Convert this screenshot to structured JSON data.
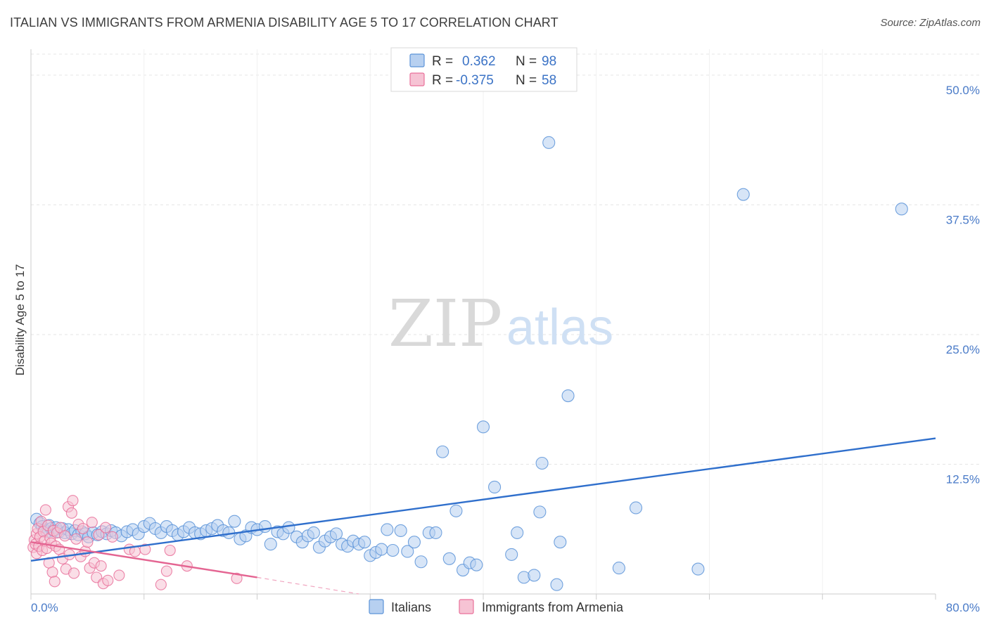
{
  "title": "ITALIAN VS IMMIGRANTS FROM ARMENIA DISABILITY AGE 5 TO 17 CORRELATION CHART",
  "source": "Source: ZipAtlas.com",
  "watermark": {
    "zip": "ZIP",
    "atlas": "atlas"
  },
  "colors": {
    "italians": "#5b93d8",
    "italians_fill": "#b7d0f0",
    "armenia": "#e9709a",
    "armenia_fill": "#f6c3d4",
    "tick_text": "#4a7bc8",
    "grid": "#e5e5e5"
  },
  "legend": {
    "rows": [
      {
        "r_label": "R =",
        "r_value": "0.362",
        "n_label": "N =",
        "n_value": "98"
      },
      {
        "r_label": "R =",
        "r_value": "-0.375",
        "n_label": "N =",
        "n_value": "58"
      }
    ]
  },
  "bottom_legend": {
    "items": [
      "Italians",
      "Immigrants from Armenia"
    ]
  },
  "chart_data": {
    "type": "scatter",
    "title": "ITALIAN VS IMMIGRANTS FROM ARMENIA DISABILITY AGE 5 TO 17 CORRELATION CHART",
    "xlabel": "",
    "ylabel": "Disability Age 5 to 17",
    "xlim": [
      0,
      80
    ],
    "ylim": [
      0,
      52.5
    ],
    "x_tick_labels": [
      {
        "value": 0,
        "label": "0.0%"
      },
      {
        "value": 80,
        "label": "80.0%"
      }
    ],
    "y_tick_labels": [
      {
        "value": 12.5,
        "label": "12.5%"
      },
      {
        "value": 25,
        "label": "25.0%"
      },
      {
        "value": 37.5,
        "label": "37.5%"
      },
      {
        "value": 50,
        "label": "50.0%"
      }
    ],
    "grid": true,
    "legend_position": "top-center",
    "series": [
      {
        "name": "Italians",
        "color": "#5b93d8",
        "trend": {
          "x": [
            0,
            80
          ],
          "y": [
            3.2,
            15.0
          ]
        },
        "points": [
          [
            0.5,
            7.2
          ],
          [
            0.8,
            6.8
          ],
          [
            1.0,
            6.5
          ],
          [
            1.2,
            6.2
          ],
          [
            1.4,
            6.0
          ],
          [
            1.6,
            6.6
          ],
          [
            1.8,
            6.3
          ],
          [
            2.0,
            6.1
          ],
          [
            2.2,
            6.4
          ],
          [
            2.5,
            6.0
          ],
          [
            2.8,
            6.3
          ],
          [
            3.0,
            5.9
          ],
          [
            3.3,
            6.2
          ],
          [
            3.6,
            5.8
          ],
          [
            3.9,
            6.1
          ],
          [
            4.2,
            5.7
          ],
          [
            4.5,
            6.0
          ],
          [
            4.8,
            5.8
          ],
          [
            5.1,
            5.5
          ],
          [
            5.5,
            5.9
          ],
          [
            5.9,
            5.7
          ],
          [
            6.3,
            6.0
          ],
          [
            6.7,
            5.8
          ],
          [
            7.1,
            6.1
          ],
          [
            7.5,
            5.9
          ],
          [
            8.0,
            5.6
          ],
          [
            8.5,
            6.0
          ],
          [
            9.0,
            6.2
          ],
          [
            9.5,
            5.8
          ],
          [
            10.0,
            6.5
          ],
          [
            10.5,
            6.8
          ],
          [
            11.0,
            6.3
          ],
          [
            11.5,
            5.9
          ],
          [
            12.0,
            6.5
          ],
          [
            12.5,
            6.1
          ],
          [
            13.0,
            5.7
          ],
          [
            13.5,
            6.0
          ],
          [
            14.0,
            6.4
          ],
          [
            14.5,
            5.9
          ],
          [
            15.0,
            5.8
          ],
          [
            15.5,
            6.1
          ],
          [
            16.0,
            6.3
          ],
          [
            16.5,
            6.6
          ],
          [
            17.0,
            6.1
          ],
          [
            17.5,
            5.9
          ],
          [
            18.0,
            7.0
          ],
          [
            18.5,
            5.3
          ],
          [
            19.0,
            5.6
          ],
          [
            19.5,
            6.4
          ],
          [
            20.0,
            6.2
          ],
          [
            20.7,
            6.5
          ],
          [
            21.2,
            4.8
          ],
          [
            21.8,
            6.0
          ],
          [
            22.3,
            5.8
          ],
          [
            22.8,
            6.4
          ],
          [
            23.5,
            5.5
          ],
          [
            24.0,
            5.0
          ],
          [
            24.5,
            5.6
          ],
          [
            25.0,
            5.9
          ],
          [
            25.5,
            4.5
          ],
          [
            26.0,
            5.1
          ],
          [
            26.5,
            5.5
          ],
          [
            27.0,
            5.8
          ],
          [
            27.5,
            4.8
          ],
          [
            28.0,
            4.6
          ],
          [
            28.5,
            5.1
          ],
          [
            29.0,
            4.8
          ],
          [
            29.5,
            5.0
          ],
          [
            30.0,
            3.7
          ],
          [
            30.5,
            4.0
          ],
          [
            31.0,
            4.3
          ],
          [
            31.5,
            6.2
          ],
          [
            32.0,
            4.2
          ],
          [
            32.7,
            6.1
          ],
          [
            33.3,
            4.1
          ],
          [
            33.9,
            5.0
          ],
          [
            34.5,
            3.1
          ],
          [
            35.2,
            5.9
          ],
          [
            35.8,
            5.9
          ],
          [
            36.4,
            13.7
          ],
          [
            37.0,
            3.4
          ],
          [
            37.6,
            8.0
          ],
          [
            38.2,
            2.3
          ],
          [
            38.8,
            3.0
          ],
          [
            39.4,
            2.8
          ],
          [
            40.0,
            16.1
          ],
          [
            41.0,
            10.3
          ],
          [
            42.5,
            3.8
          ],
          [
            43.0,
            5.9
          ],
          [
            43.6,
            1.6
          ],
          [
            44.5,
            1.8
          ],
          [
            45.0,
            7.9
          ],
          [
            45.2,
            12.6
          ],
          [
            45.8,
            43.5
          ],
          [
            46.5,
            0.9
          ],
          [
            46.8,
            5.0
          ],
          [
            47.5,
            19.1
          ],
          [
            52.0,
            2.5
          ],
          [
            53.5,
            8.3
          ],
          [
            59.0,
            2.4
          ],
          [
            63.0,
            38.5
          ],
          [
            77.0,
            37.1
          ]
        ]
      },
      {
        "name": "Immigrants from Armenia",
        "color": "#e9709a",
        "trend": {
          "x": [
            0,
            20
          ],
          "y": [
            5.0,
            1.6
          ]
        },
        "trend_dashed": {
          "x": [
            20,
            29
          ],
          "y": [
            1.6,
            0.0
          ]
        },
        "points": [
          [
            0.2,
            4.5
          ],
          [
            0.3,
            5.2
          ],
          [
            0.4,
            4.8
          ],
          [
            0.5,
            5.8
          ],
          [
            0.5,
            3.9
          ],
          [
            0.6,
            6.3
          ],
          [
            0.7,
            4.6
          ],
          [
            0.8,
            5.5
          ],
          [
            0.9,
            7.0
          ],
          [
            1.0,
            4.2
          ],
          [
            1.1,
            6.0
          ],
          [
            1.2,
            5.1
          ],
          [
            1.3,
            8.1
          ],
          [
            1.4,
            4.4
          ],
          [
            1.5,
            6.6
          ],
          [
            1.6,
            3.0
          ],
          [
            1.7,
            5.4
          ],
          [
            1.8,
            4.9
          ],
          [
            1.9,
            2.1
          ],
          [
            2.0,
            6.1
          ],
          [
            2.1,
            1.2
          ],
          [
            2.2,
            4.6
          ],
          [
            2.3,
            5.9
          ],
          [
            2.5,
            4.3
          ],
          [
            2.6,
            6.4
          ],
          [
            2.8,
            3.4
          ],
          [
            3.0,
            5.6
          ],
          [
            3.1,
            2.4
          ],
          [
            3.3,
            8.4
          ],
          [
            3.4,
            3.8
          ],
          [
            3.6,
            7.8
          ],
          [
            3.7,
            9.0
          ],
          [
            3.8,
            2.0
          ],
          [
            4.0,
            5.3
          ],
          [
            4.2,
            6.7
          ],
          [
            4.4,
            3.6
          ],
          [
            4.6,
            6.3
          ],
          [
            4.8,
            4.1
          ],
          [
            5.0,
            5.0
          ],
          [
            5.2,
            2.5
          ],
          [
            5.4,
            6.9
          ],
          [
            5.6,
            3.0
          ],
          [
            5.8,
            1.6
          ],
          [
            6.0,
            5.7
          ],
          [
            6.2,
            2.7
          ],
          [
            6.4,
            1.0
          ],
          [
            6.6,
            6.4
          ],
          [
            6.8,
            1.3
          ],
          [
            7.2,
            5.5
          ],
          [
            7.8,
            1.8
          ],
          [
            8.7,
            4.3
          ],
          [
            9.2,
            4.1
          ],
          [
            10.1,
            4.3
          ],
          [
            11.5,
            0.9
          ],
          [
            12.0,
            2.2
          ],
          [
            12.3,
            4.2
          ],
          [
            13.8,
            2.7
          ],
          [
            18.2,
            1.5
          ]
        ]
      }
    ]
  }
}
